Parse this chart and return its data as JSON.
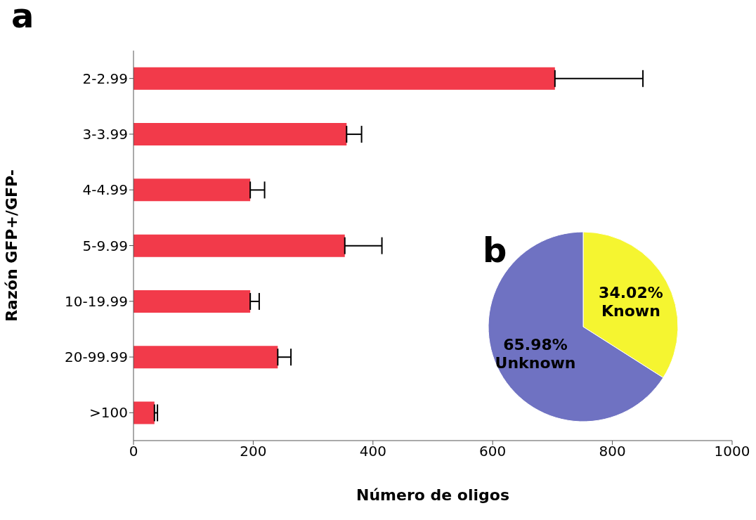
{
  "chart_data": [
    {
      "type": "bar",
      "title": "a",
      "orientation": "horizontal",
      "categories": [
        "2-2.99",
        "3-3.99",
        "4-4.99",
        "5-9.99",
        "10-19.99",
        "20-99.99",
        ">100"
      ],
      "values": [
        704,
        356,
        195,
        353,
        195,
        241,
        35
      ],
      "errors": [
        [
          704,
          851
        ],
        [
          356,
          381
        ],
        [
          195,
          219
        ],
        [
          353,
          415
        ],
        [
          195,
          210
        ],
        [
          241,
          263
        ],
        [
          35,
          40
        ]
      ],
      "color": "#f23a4a",
      "xlim": [
        0,
        1000
      ],
      "xticks": [
        0,
        200,
        400,
        600,
        800,
        1000
      ],
      "xlabel": "Número de oligos",
      "ylabel": "Razón GFP+/GFP-",
      "grid": false,
      "legend": false
    },
    {
      "type": "pie",
      "title": "b",
      "categories": [
        "Known",
        "Unknown"
      ],
      "values": [
        34.02,
        65.98
      ],
      "colors": [
        "#f5f530",
        "#6f72c2"
      ],
      "value_labels": [
        "34.02%",
        "65.98%"
      ],
      "legend": false
    }
  ]
}
